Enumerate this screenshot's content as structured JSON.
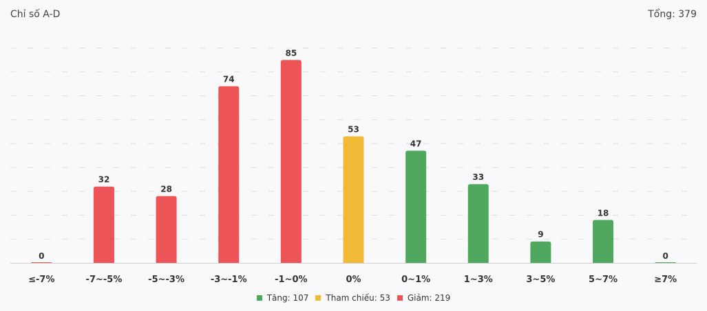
{
  "chart_data": {
    "type": "bar",
    "title": "Chỉ số A-D",
    "total_label": "Tổng: 379",
    "categories": [
      "≤-7%",
      "-7~-5%",
      "-5~-3%",
      "-3~-1%",
      "-1~0%",
      "0%",
      "0~1%",
      "1~3%",
      "3~5%",
      "5~7%",
      "≥7%"
    ],
    "values": [
      0,
      32,
      28,
      74,
      85,
      53,
      47,
      33,
      9,
      18,
      0
    ],
    "groups": [
      "down",
      "down",
      "down",
      "down",
      "down",
      "ref",
      "up",
      "up",
      "up",
      "up",
      "up"
    ],
    "ylim": [
      0,
      90
    ],
    "grid_step": 10,
    "grid": true,
    "xlabel": "",
    "ylabel": "",
    "legend_position": "bottom-center",
    "legend": [
      {
        "key": "up",
        "label": "Tăng: 107",
        "color": "#4fa85e"
      },
      {
        "key": "ref",
        "label": "Tham chiếu: 53",
        "color": "#f2b936"
      },
      {
        "key": "down",
        "label": "Giảm: 219",
        "color": "#ec5457"
      }
    ]
  }
}
